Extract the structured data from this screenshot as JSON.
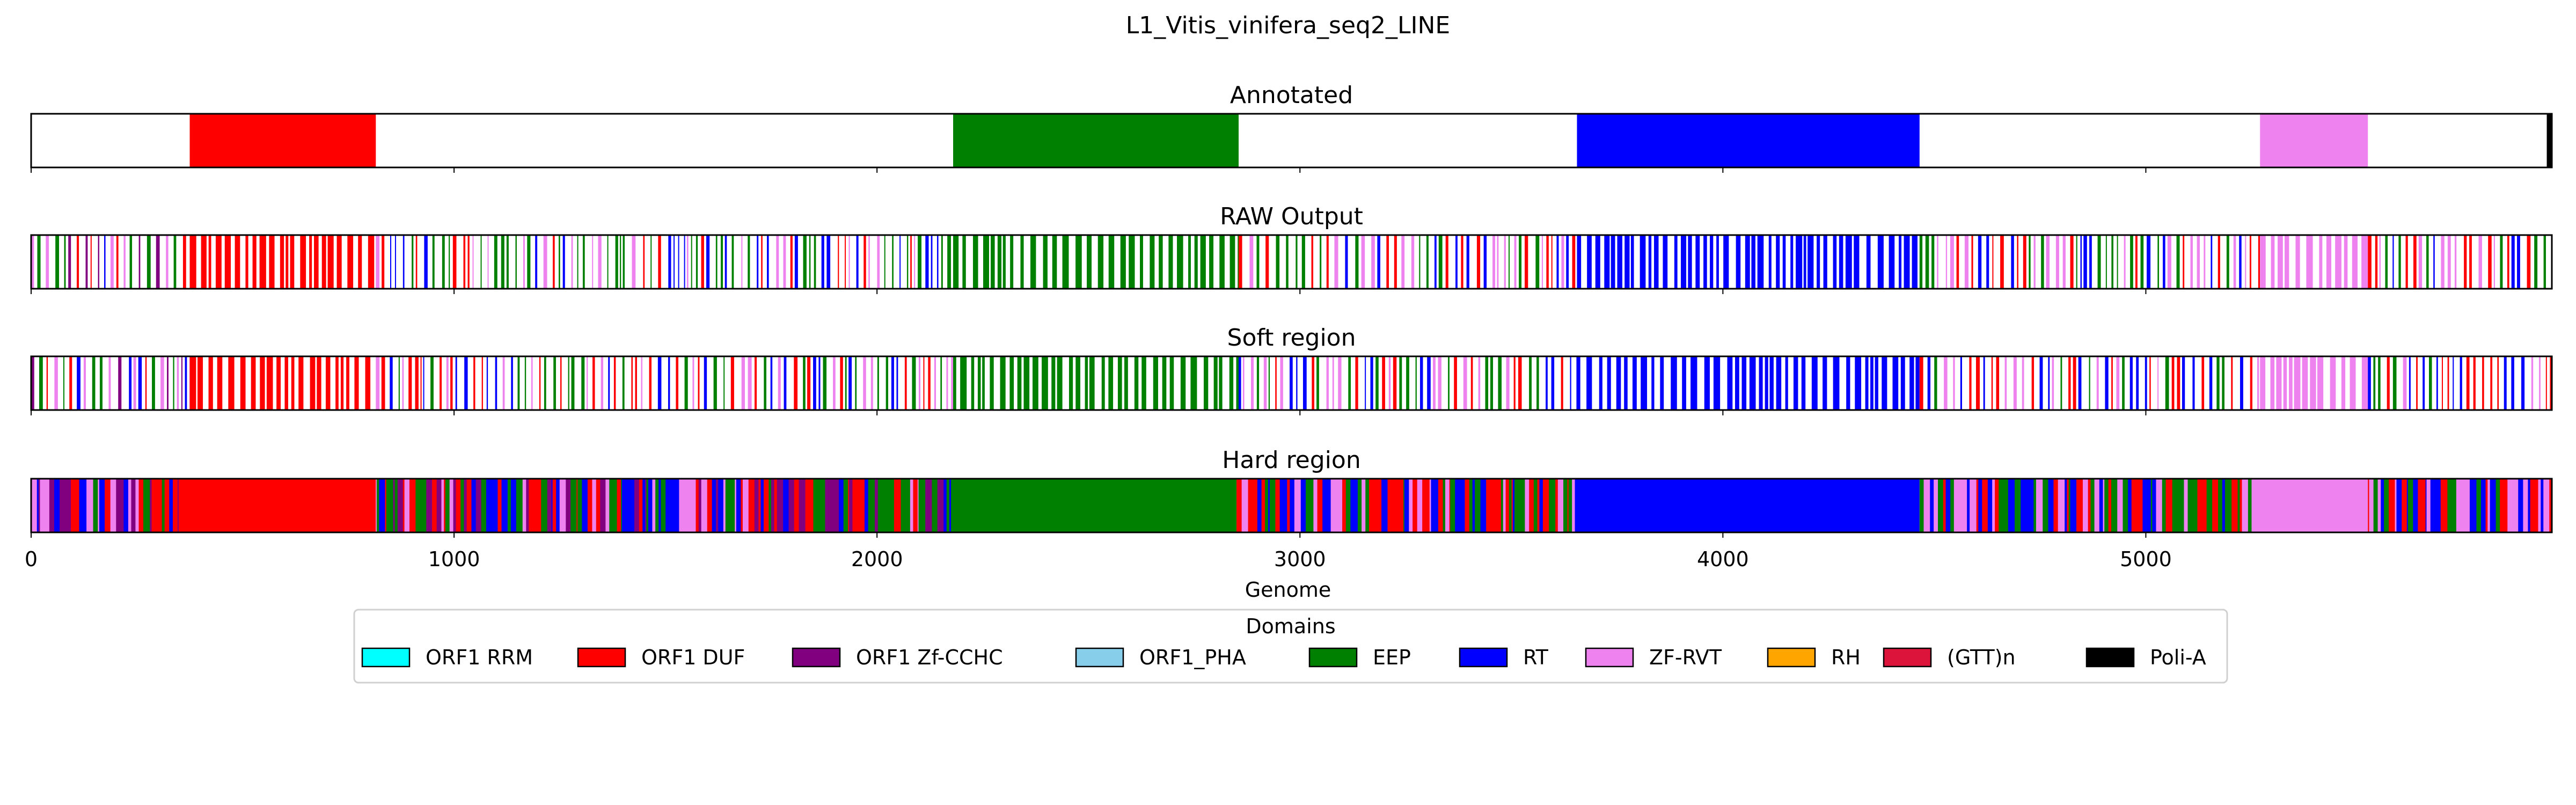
{
  "chart_data": {
    "type": "heatmap",
    "title": "L1_Vitis_vinifera_seq2_LINE",
    "xlabel": "Genome",
    "xlim": [
      0,
      5960
    ],
    "xticks": [
      0,
      1000,
      2000,
      3000,
      4000,
      5000
    ],
    "xtick_labels": [
      "0",
      "1000",
      "2000",
      "3000",
      "4000",
      "5000"
    ],
    "colors": {
      "ORF1 RRM": "#00ffff",
      "ORF1 DUF": "#ff0000",
      "ORF1 Zf-CCHC": "#800080",
      "ORF1_PHA": "#87ceeb",
      "EEP": "#008000",
      "RT": "#0000ff",
      "ZF-RVT": "#ee82ee",
      "RH": "#ffa500",
      "(GTT)n": "#dc143c",
      "Poli-A": "#000000"
    },
    "legend": {
      "title": "Domains",
      "position": "bottom-center",
      "entries": [
        "ORF1 RRM",
        "ORF1 DUF",
        "ORF1 Zf-CCHC",
        "ORF1_PHA",
        "EEP",
        "RT",
        "ZF-RVT",
        "RH",
        "(GTT)n",
        "Poli-A"
      ]
    },
    "tracks": [
      {
        "name": "Annotated",
        "segments": [
          {
            "domain": "ORF1 DUF",
            "start": 375,
            "end": 815
          },
          {
            "domain": "EEP",
            "start": 2180,
            "end": 2855
          },
          {
            "domain": "RT",
            "start": 3655,
            "end": 4465
          },
          {
            "domain": "ZF-RVT",
            "start": 5270,
            "end": 5525
          },
          {
            "domain": "Poli-A",
            "start": 5948,
            "end": 5960
          }
        ]
      },
      {
        "name": "RAW Output",
        "pattern": "sparse",
        "zones": [
          {
            "start": 0,
            "end": 375,
            "palette": [
              "RT",
              "ORF1 DUF",
              "EEP",
              "ZF-RVT",
              "ORF1 Zf-CCHC"
            ]
          },
          {
            "start": 375,
            "end": 815,
            "palette": [
              "ORF1 DUF"
            ]
          },
          {
            "start": 815,
            "end": 2180,
            "palette": [
              "EEP",
              "RT",
              "ORF1 DUF",
              "ZF-RVT"
            ]
          },
          {
            "start": 2180,
            "end": 2855,
            "palette": [
              "EEP"
            ]
          },
          {
            "start": 2855,
            "end": 3655,
            "palette": [
              "EEP",
              "RT",
              "ORF1 DUF",
              "ZF-RVT"
            ]
          },
          {
            "start": 3655,
            "end": 4465,
            "palette": [
              "RT"
            ]
          },
          {
            "start": 4465,
            "end": 5270,
            "palette": [
              "RT",
              "EEP",
              "ZF-RVT",
              "ORF1 DUF"
            ]
          },
          {
            "start": 5270,
            "end": 5525,
            "palette": [
              "ZF-RVT"
            ]
          },
          {
            "start": 5525,
            "end": 5960,
            "palette": [
              "RT",
              "EEP",
              "ORF1 DUF",
              "ZF-RVT"
            ]
          }
        ]
      },
      {
        "name": "Soft region",
        "pattern": "sparse",
        "zones": [
          {
            "start": 0,
            "end": 375,
            "palette": [
              "RT",
              "ORF1 DUF",
              "EEP",
              "ZF-RVT",
              "ORF1 Zf-CCHC"
            ]
          },
          {
            "start": 375,
            "end": 815,
            "palette": [
              "ORF1 DUF"
            ]
          },
          {
            "start": 815,
            "end": 2180,
            "palette": [
              "EEP",
              "RT",
              "ORF1 DUF",
              "ZF-RVT"
            ]
          },
          {
            "start": 2180,
            "end": 2855,
            "palette": [
              "EEP"
            ]
          },
          {
            "start": 2855,
            "end": 3655,
            "palette": [
              "EEP",
              "RT",
              "ORF1 DUF",
              "ZF-RVT"
            ]
          },
          {
            "start": 3655,
            "end": 4465,
            "palette": [
              "RT"
            ]
          },
          {
            "start": 4465,
            "end": 5270,
            "palette": [
              "RT",
              "EEP",
              "ZF-RVT",
              "ORF1 DUF"
            ]
          },
          {
            "start": 5270,
            "end": 5525,
            "palette": [
              "ZF-RVT"
            ]
          },
          {
            "start": 5525,
            "end": 5960,
            "palette": [
              "RT",
              "EEP",
              "ORF1 DUF",
              "ZF-RVT"
            ]
          }
        ]
      },
      {
        "name": "Hard region",
        "pattern": "dense",
        "zones": [
          {
            "start": 0,
            "end": 350,
            "palette": [
              "RT",
              "EEP",
              "ORF1 DUF",
              "ORF1 Zf-CCHC",
              "ZF-RVT"
            ]
          },
          {
            "start": 350,
            "end": 815,
            "palette": [
              "ORF1 DUF"
            ]
          },
          {
            "start": 815,
            "end": 2175,
            "palette": [
              "RT",
              "EEP",
              "ORF1 DUF",
              "ZF-RVT",
              "ORF1 Zf-CCHC"
            ]
          },
          {
            "start": 2175,
            "end": 2850,
            "palette": [
              "EEP"
            ]
          },
          {
            "start": 2850,
            "end": 3650,
            "palette": [
              "RT",
              "ORF1 DUF",
              "EEP",
              "ZF-RVT"
            ]
          },
          {
            "start": 3650,
            "end": 4465,
            "palette": [
              "RT"
            ]
          },
          {
            "start": 4465,
            "end": 5250,
            "palette": [
              "ZF-RVT",
              "RT",
              "EEP",
              "ORF1 DUF"
            ]
          },
          {
            "start": 5250,
            "end": 5525,
            "palette": [
              "ZF-RVT"
            ]
          },
          {
            "start": 5525,
            "end": 5960,
            "palette": [
              "RT",
              "EEP",
              "ORF1 DUF",
              "ZF-RVT"
            ]
          }
        ]
      }
    ]
  }
}
